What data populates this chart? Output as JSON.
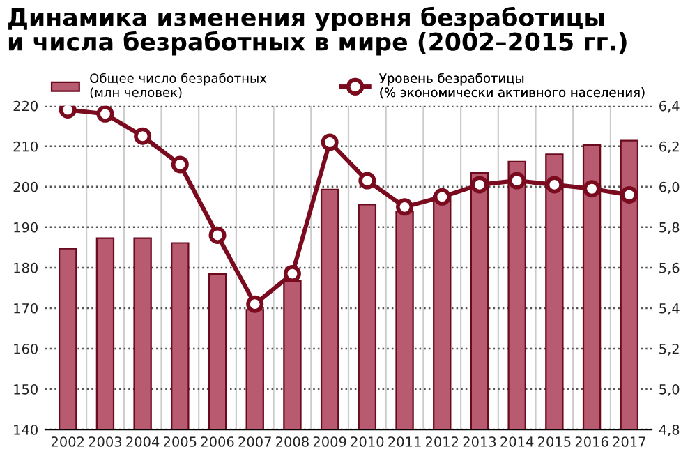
{
  "chart_data": {
    "type": "bar",
    "title": "Динамика изменения уровня безработицы\nи числа безработных в мире (2002–2015 гг.)",
    "categories": [
      "2002",
      "2003",
      "2004",
      "2005",
      "2006",
      "2007",
      "2008",
      "2009",
      "2010",
      "2011",
      "2012",
      "2013",
      "2014",
      "2015",
      "2016",
      "2017"
    ],
    "series": [
      {
        "name": "Общее число безработных\n(млн человек)",
        "color": "#b85a70",
        "values": [
          184.7,
          187.3,
          187.3,
          186.1,
          178.4,
          169.6,
          176.7,
          199.3,
          195.6,
          193.9,
          197.8,
          203.4,
          206.2,
          208.0,
          210.3,
          211.4
        ]
      },
      {
        "name": "Уровень безработицы\n(% экономически активного населения)",
        "type": "line",
        "axis": "y2",
        "color": "#7a0a1e",
        "values": [
          6.38,
          6.36,
          6.25,
          6.11,
          5.76,
          5.42,
          5.57,
          6.22,
          6.03,
          5.9,
          5.95,
          6.01,
          6.03,
          6.01,
          5.99,
          5.96
        ]
      }
    ],
    "ylim": [
      140,
      220
    ],
    "yticks": [
      140,
      150,
      160,
      170,
      180,
      190,
      200,
      210,
      220
    ],
    "y2lim": [
      4.8,
      6.4
    ],
    "y2ticks": [
      {
        "value": 4.8,
        "label": "4,8"
      },
      {
        "value": 5.0,
        "label": "5,0"
      },
      {
        "value": 5.2,
        "label": "5,2"
      },
      {
        "value": 5.4,
        "label": "5,4"
      },
      {
        "value": 5.6,
        "label": "5,6"
      },
      {
        "value": 5.8,
        "label": "5,8"
      },
      {
        "value": 6.0,
        "label": "6,0"
      },
      {
        "value": 6.2,
        "label": "6,2"
      },
      {
        "value": 6.4,
        "label": "6,4"
      }
    ],
    "grid": true,
    "legend": "top",
    "marker": "circle",
    "line_style": "solid"
  }
}
